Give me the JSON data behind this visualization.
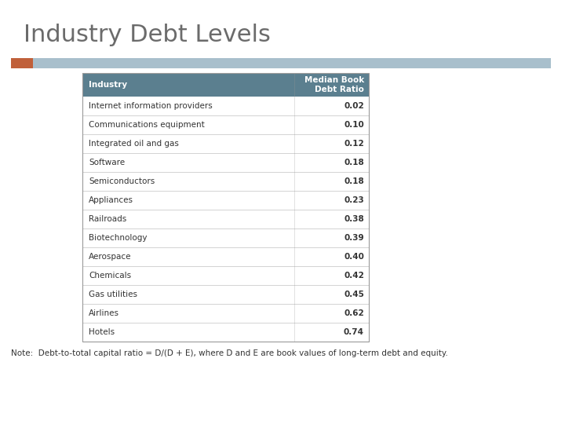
{
  "title": "Industry Debt Levels",
  "title_color": "#6b6b6b",
  "title_fontsize": 22,
  "note": "Note:  Debt-to-total capital ratio = D/(D + E), where D and E are book values of long-term debt and equity.",
  "header": [
    "Industry",
    "Median Book\nDebt Ratio"
  ],
  "rows": [
    [
      "Internet information providers",
      "0.02"
    ],
    [
      "Communications equipment",
      "0.10"
    ],
    [
      "Integrated oil and gas",
      "0.12"
    ],
    [
      "Software",
      "0.18"
    ],
    [
      "Semiconductors",
      "0.18"
    ],
    [
      "Appliances",
      "0.23"
    ],
    [
      "Railroads",
      "0.38"
    ],
    [
      "Biotechnology",
      "0.39"
    ],
    [
      "Aerospace",
      "0.40"
    ],
    [
      "Chemicals",
      "0.42"
    ],
    [
      "Gas utilities",
      "0.45"
    ],
    [
      "Airlines",
      "0.62"
    ],
    [
      "Hotels",
      "0.74"
    ]
  ],
  "header_bg_color": "#5b7f8f",
  "header_text_color": "#ffffff",
  "table_border_color": "#999999",
  "row_line_color": "#cccccc",
  "slide_bar_color_left": "#c0603a",
  "slide_bar_color_right": "#a8bfcc",
  "background_color": "#ffffff",
  "note_fontsize": 7.5,
  "note_color": "#333333",
  "header_fontsize": 7.5,
  "row_fontsize": 7.5
}
